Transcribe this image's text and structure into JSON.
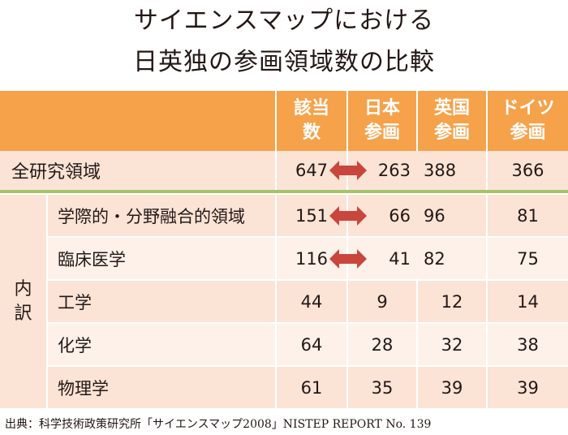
{
  "title": {
    "line1": "サイエンスマップにおける",
    "line2": "日英独の参画領域数の比較"
  },
  "table": {
    "headers": [
      [
        "該当",
        "数"
      ],
      [
        "日本",
        "参画"
      ],
      [
        "英国",
        "参画"
      ],
      [
        "ドイツ",
        "参画"
      ]
    ],
    "total_row": {
      "label": "全研究領域",
      "count": "647",
      "japan": "263",
      "uk": "388",
      "germany": "366"
    },
    "breakdown_label": [
      "内",
      "訳"
    ],
    "rows": [
      {
        "label": "学際的・分野融合的領域",
        "count": "151",
        "japan": "66",
        "uk": "96",
        "germany": "81"
      },
      {
        "label": "臨床医学",
        "count": "116",
        "japan": "41",
        "uk": "82",
        "germany": "75"
      },
      {
        "label": "工学",
        "count": "44",
        "japan": "9",
        "uk": "12",
        "germany": "14"
      },
      {
        "label": "化学",
        "count": "64",
        "japan": "28",
        "uk": "32",
        "germany": "38"
      },
      {
        "label": "物理学",
        "count": "61",
        "japan": "35",
        "uk": "39",
        "germany": "39"
      }
    ]
  },
  "colors": {
    "header_bg": "#f5a24a",
    "row_bg": "#fbe3d6",
    "separator": "#a3c46a",
    "arrow": "#c9463d"
  },
  "icons": {
    "comparison": "double-arrow-icon"
  },
  "source": "出典：科学技術政策研究所「サイエンスマップ2008」NISTEP REPORT No. 139"
}
